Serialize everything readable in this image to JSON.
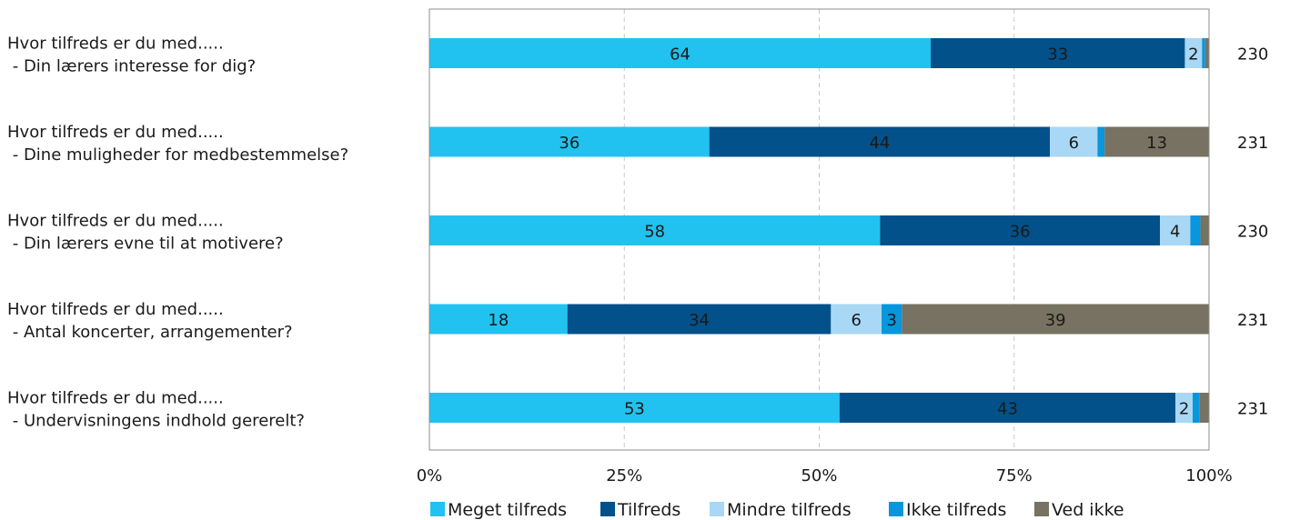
{
  "chart_data": {
    "type": "bar",
    "orientation": "horizontal",
    "stacked": true,
    "percent_scale": true,
    "xlim": [
      0,
      100
    ],
    "xticks": [
      "0%",
      "25%",
      "50%",
      "75%",
      "100%"
    ],
    "grid": true,
    "legend_position": "bottom",
    "categories": [
      [
        "Hvor tilfreds er du med.....",
        " - Din lærers interesse for dig?"
      ],
      [
        "Hvor tilfreds er du med.....",
        " - Dine muligheder for medbestemmelse?"
      ],
      [
        "Hvor tilfreds er du med.....",
        " - Din lærers evne til at motivere?"
      ],
      [
        "Hvor tilfreds er du med.....",
        " - Antal koncerter, arrangementer?"
      ],
      [
        "Hvor tilfreds er du med.....",
        " - Undervisningens indhold gererelt?"
      ]
    ],
    "n": [
      "230",
      "231",
      "230",
      "231",
      "231"
    ],
    "series": [
      {
        "name": "Meget tilfreds",
        "color": "#21c2f0",
        "values": [
          64.3,
          35.9,
          57.8,
          17.7,
          52.6
        ]
      },
      {
        "name": "Tilfreds",
        "color": "#02518a",
        "values": [
          32.6,
          43.7,
          35.9,
          33.8,
          43.1
        ]
      },
      {
        "name": "Mindre tilfreds",
        "color": "#a8d8f5",
        "values": [
          2.2,
          6.1,
          3.9,
          6.5,
          2.2
        ]
      },
      {
        "name": "Ikke tilfreds",
        "color": "#0896dc",
        "values": [
          0.4,
          0.9,
          1.3,
          2.6,
          0.9
        ]
      },
      {
        "name": "Ved ikke",
        "color": "#777261",
        "values": [
          0.5,
          13.4,
          1.1,
          39.4,
          1.2
        ]
      }
    ],
    "data_labels": [
      [
        "64",
        "33",
        "2",
        "",
        ""
      ],
      [
        "36",
        "44",
        "6",
        "",
        "13"
      ],
      [
        "58",
        "36",
        "4",
        "",
        ""
      ],
      [
        "18",
        "34",
        "6",
        "3",
        "39"
      ],
      [
        "53",
        "43",
        "2",
        "",
        ""
      ]
    ]
  }
}
